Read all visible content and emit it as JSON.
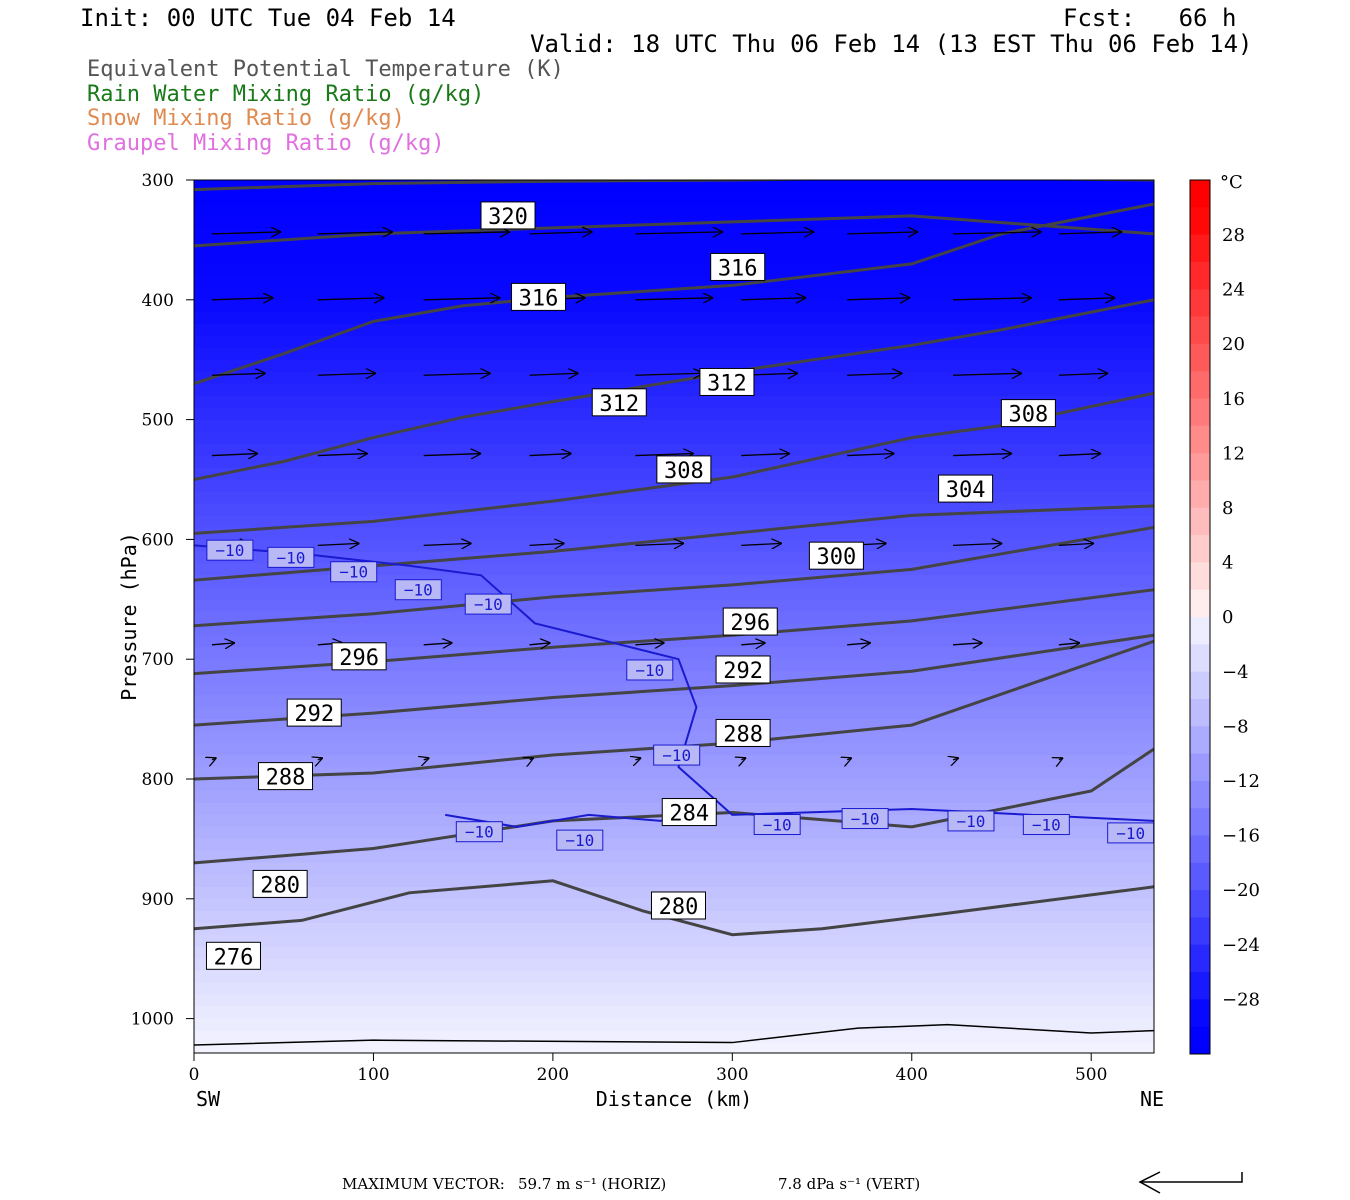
{
  "header": {
    "init": "Init: 00 UTC Tue 04 Feb 14",
    "fcst": "Fcst:   66 h",
    "valid": "Valid: 18 UTC Thu 06 Feb 14 (13 EST Thu 06 Feb 14)"
  },
  "legend": [
    {
      "label": "Equivalent Potential Temperature (K)",
      "color": "#555555"
    },
    {
      "label": "Rain Water Mixing Ratio (g/kg)",
      "color": "#1a7a1a"
    },
    {
      "label": "Snow Mixing Ratio (g/kg)",
      "color": "#e08a50"
    },
    {
      "label": "Graupel Mixing Ratio (g/kg)",
      "color": "#e070e0"
    }
  ],
  "chart_data": {
    "type": "cross-section",
    "xlabel": "Distance (km)",
    "ylabel": "Pressure (hPa)",
    "xlim": [
      0,
      535
    ],
    "ylim": [
      1030,
      300
    ],
    "x_ticks": [
      0,
      100,
      200,
      300,
      400,
      500
    ],
    "y_ticks": [
      300,
      400,
      500,
      600,
      700,
      800,
      900,
      1000
    ],
    "left_end_label": "SW",
    "right_end_label": "NE",
    "colorbar": {
      "unit": "°C",
      "tick_labels": [
        "28",
        "24",
        "20",
        "16",
        "12",
        "8",
        "4",
        "0",
        "−4",
        "−8",
        "−12",
        "−16",
        "−20",
        "−24",
        "−28"
      ],
      "levels": [
        -32,
        -30,
        -28,
        -26,
        -24,
        -22,
        -20,
        -18,
        -16,
        -14,
        -12,
        -10,
        -8,
        -6,
        -4,
        -2,
        0,
        2,
        4,
        6,
        8,
        10,
        12,
        14,
        16,
        18,
        20,
        22,
        24,
        26,
        28,
        30,
        32
      ]
    },
    "theta_e_contours": [
      {
        "label": "320",
        "points": [
          [
            0,
            308
          ],
          [
            100,
            303
          ],
          [
            200,
            301
          ],
          [
            300,
            300
          ],
          [
            400,
            298
          ],
          [
            535,
            300
          ]
        ]
      },
      {
        "label": "316",
        "points": [
          [
            0,
            355
          ],
          [
            100,
            345
          ],
          [
            200,
            340
          ],
          [
            300,
            335
          ],
          [
            400,
            330
          ],
          [
            535,
            345
          ]
        ]
      },
      {
        "label": "312",
        "points": [
          [
            0,
            470
          ],
          [
            50,
            445
          ],
          [
            100,
            418
          ],
          [
            150,
            405
          ],
          [
            200,
            398
          ],
          [
            300,
            388
          ],
          [
            400,
            370
          ],
          [
            450,
            345
          ],
          [
            535,
            320
          ]
        ]
      },
      {
        "label": "308",
        "points": [
          [
            0,
            550
          ],
          [
            50,
            535
          ],
          [
            100,
            515
          ],
          [
            150,
            498
          ],
          [
            200,
            485
          ],
          [
            300,
            460
          ],
          [
            400,
            438
          ],
          [
            450,
            425
          ],
          [
            535,
            400
          ]
        ]
      },
      {
        "label": "304",
        "points": [
          [
            0,
            595
          ],
          [
            100,
            585
          ],
          [
            200,
            568
          ],
          [
            300,
            548
          ],
          [
            400,
            515
          ],
          [
            450,
            505
          ],
          [
            535,
            478
          ]
        ]
      },
      {
        "label": "300",
        "points": [
          [
            0,
            634
          ],
          [
            100,
            622
          ],
          [
            200,
            610
          ],
          [
            300,
            595
          ],
          [
            400,
            580
          ],
          [
            535,
            572
          ]
        ]
      },
      {
        "label": "296",
        "points": [
          [
            0,
            672
          ],
          [
            100,
            662
          ],
          [
            200,
            648
          ],
          [
            300,
            638
          ],
          [
            400,
            625
          ],
          [
            535,
            590
          ]
        ]
      },
      {
        "label": "292",
        "points": [
          [
            0,
            712
          ],
          [
            100,
            702
          ],
          [
            200,
            690
          ],
          [
            300,
            680
          ],
          [
            400,
            668
          ],
          [
            535,
            642
          ]
        ]
      },
      {
        "label": "288",
        "points": [
          [
            0,
            755
          ],
          [
            100,
            745
          ],
          [
            200,
            732
          ],
          [
            300,
            722
          ],
          [
            400,
            710
          ],
          [
            535,
            680
          ]
        ]
      },
      {
        "label": "284",
        "points": [
          [
            0,
            800
          ],
          [
            100,
            795
          ],
          [
            200,
            780
          ],
          [
            300,
            770
          ],
          [
            400,
            755
          ],
          [
            535,
            685
          ]
        ]
      },
      {
        "label": "280",
        "points": [
          [
            0,
            870
          ],
          [
            100,
            858
          ],
          [
            200,
            835
          ],
          [
            300,
            828
          ],
          [
            400,
            840
          ],
          [
            450,
            825
          ],
          [
            500,
            810
          ],
          [
            535,
            775
          ]
        ]
      },
      {
        "label": "276",
        "points": [
          [
            0,
            925
          ],
          [
            60,
            918
          ],
          [
            120,
            895
          ],
          [
            200,
            885
          ],
          [
            250,
            910
          ],
          [
            300,
            930
          ],
          [
            350,
            925
          ],
          [
            420,
            912
          ],
          [
            535,
            890
          ]
        ]
      }
    ],
    "temperature_contours": [
      {
        "label": "−10",
        "points": [
          [
            0,
            605
          ],
          [
            60,
            612
          ],
          [
            120,
            622
          ],
          [
            160,
            630
          ],
          [
            190,
            670
          ],
          [
            230,
            685
          ],
          [
            270,
            700
          ],
          [
            280,
            740
          ],
          [
            270,
            790
          ],
          [
            300,
            830
          ],
          [
            400,
            825
          ],
          [
            535,
            835
          ]
        ]
      },
      {
        "label": "−10",
        "points": [
          [
            140,
            830
          ],
          [
            180,
            840
          ],
          [
            220,
            830
          ],
          [
            260,
            835
          ],
          [
            280,
            828
          ]
        ]
      }
    ],
    "max_vector": {
      "horizontal": "59.7 m s⁻¹ (HORIZ)",
      "vertical": "7.8 dPa s⁻¹ (VERT)"
    }
  },
  "labels": {
    "theta_e": [
      {
        "text": "320",
        "x": 175,
        "p": 330
      },
      {
        "text": "316",
        "x": 303,
        "p": 373
      },
      {
        "text": "316",
        "x": 192,
        "p": 398
      },
      {
        "text": "312",
        "x": 297,
        "p": 469
      },
      {
        "text": "312",
        "x": 237,
        "p": 486
      },
      {
        "text": "308",
        "x": 465,
        "p": 495
      },
      {
        "text": "308",
        "x": 273,
        "p": 542
      },
      {
        "text": "304",
        "x": 430,
        "p": 558
      },
      {
        "text": "300",
        "x": 358,
        "p": 614
      },
      {
        "text": "296",
        "x": 310,
        "p": 669
      },
      {
        "text": "296",
        "x": 92,
        "p": 698
      },
      {
        "text": "292",
        "x": 306,
        "p": 709
      },
      {
        "text": "292",
        "x": 67,
        "p": 745
      },
      {
        "text": "288",
        "x": 306,
        "p": 762
      },
      {
        "text": "288",
        "x": 51,
        "p": 798
      },
      {
        "text": "284",
        "x": 276,
        "p": 828
      },
      {
        "text": "280",
        "x": 48,
        "p": 888
      },
      {
        "text": "280",
        "x": 270,
        "p": 906
      },
      {
        "text": "276",
        "x": 22,
        "p": 948
      }
    ],
    "temp": [
      {
        "text": "−10",
        "x": 20,
        "p": 609
      },
      {
        "text": "−10",
        "x": 54,
        "p": 615
      },
      {
        "text": "−10",
        "x": 89,
        "p": 627
      },
      {
        "text": "−10",
        "x": 125,
        "p": 642
      },
      {
        "text": "−10",
        "x": 164,
        "p": 654
      },
      {
        "text": "−10",
        "x": 254,
        "p": 709
      },
      {
        "text": "−10",
        "x": 269,
        "p": 780
      },
      {
        "text": "−10",
        "x": 325,
        "p": 838
      },
      {
        "text": "−10",
        "x": 374,
        "p": 833
      },
      {
        "text": "−10",
        "x": 433,
        "p": 835
      },
      {
        "text": "−10",
        "x": 475,
        "p": 838
      },
      {
        "text": "−10",
        "x": 522,
        "p": 845
      },
      {
        "text": "−10",
        "x": 159,
        "p": 844
      },
      {
        "text": "−10",
        "x": 215,
        "p": 851
      }
    ]
  },
  "footer": {
    "prefix": "MAXIMUM VECTOR:"
  }
}
